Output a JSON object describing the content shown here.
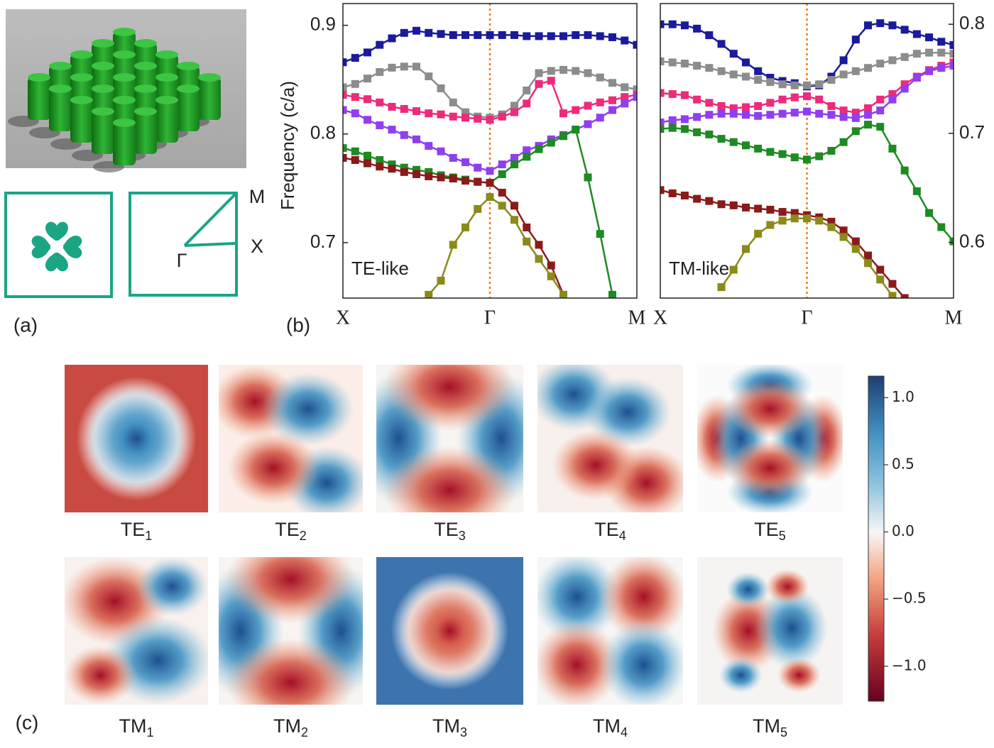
{
  "panel_labels": [
    "(a)",
    "(b)",
    "(c)"
  ],
  "brillouin_zone": {
    "points": [
      "M",
      "X",
      "Γ"
    ]
  },
  "chart_data": [
    {
      "type": "line",
      "annotation": "TE-like",
      "ylabel": "Frequency (c/a)",
      "axis_side": "left",
      "x": [
        0,
        1,
        2,
        3,
        4,
        5,
        6,
        7,
        8,
        9,
        10,
        11,
        12,
        13,
        14,
        15,
        16,
        17,
        18,
        19,
        20,
        21,
        22,
        23,
        24
      ],
      "xlim": [
        0,
        24
      ],
      "xticks": [
        {
          "value": 0,
          "label": "X"
        },
        {
          "value": 12,
          "label": "Γ"
        },
        {
          "value": 24,
          "label": "M"
        }
      ],
      "ylim": [
        0.649,
        0.92
      ],
      "yticks": [
        {
          "value": 0.7,
          "label": "0.7"
        },
        {
          "value": 0.8,
          "label": "0.8"
        },
        {
          "value": 0.9,
          "label": "0.9"
        }
      ],
      "series": [
        {
          "color": "#1a1a9c",
          "values": [
            0.866,
            0.87,
            0.875,
            0.882,
            0.888,
            0.893,
            0.895,
            0.893,
            0.892,
            0.891,
            0.891,
            0.891,
            0.891,
            0.891,
            0.891,
            0.89,
            0.89,
            0.89,
            0.89,
            0.891,
            0.891,
            0.89,
            0.889,
            0.886,
            0.882
          ]
        },
        {
          "color": "#8c8c8c",
          "values": [
            0.843,
            0.846,
            0.851,
            0.857,
            0.861,
            0.862,
            0.862,
            0.853,
            0.842,
            0.829,
            0.82,
            0.816,
            0.815,
            0.818,
            0.826,
            0.84,
            0.856,
            0.858,
            0.859,
            0.858,
            0.856,
            0.852,
            0.847,
            0.843,
            0.841
          ]
        },
        {
          "color": "#ee2a7b",
          "values": [
            0.836,
            0.834,
            0.832,
            0.829,
            0.825,
            0.823,
            0.821,
            0.819,
            0.818,
            0.816,
            0.815,
            0.814,
            0.813,
            0.816,
            0.82,
            0.828,
            0.846,
            0.849,
            0.819,
            0.822,
            0.826,
            0.829,
            0.831,
            0.834,
            0.836
          ]
        },
        {
          "color": "#8f3ff0",
          "values": [
            0.822,
            0.819,
            0.813,
            0.808,
            0.804,
            0.799,
            0.795,
            0.789,
            0.784,
            0.778,
            0.774,
            0.769,
            0.766,
            0.772,
            0.778,
            0.785,
            0.789,
            0.795,
            0.799,
            0.804,
            0.809,
            0.815,
            0.822,
            0.828,
            0.834
          ]
        },
        {
          "color": "#1e8a22",
          "values": [
            0.787,
            0.784,
            0.78,
            0.776,
            0.772,
            0.769,
            0.767,
            0.765,
            0.762,
            0.76,
            0.758,
            0.756,
            0.755,
            0.763,
            0.772,
            0.779,
            0.786,
            0.792,
            0.798,
            0.804,
            0.76,
            0.708,
            0.652,
            null,
            null
          ]
        },
        {
          "color": "#8b1a1a",
          "values": [
            0.778,
            0.776,
            0.773,
            0.77,
            0.768,
            0.765,
            0.763,
            0.761,
            0.76,
            0.759,
            0.757,
            0.756,
            0.755,
            0.746,
            0.734,
            0.714,
            0.698,
            0.679,
            0.652,
            null,
            null,
            null,
            null,
            null,
            null
          ]
        },
        {
          "color": "#8b8a1a",
          "values": [
            null,
            null,
            null,
            null,
            null,
            null,
            null,
            0.652,
            0.665,
            0.698,
            0.714,
            0.731,
            0.742,
            0.734,
            0.721,
            0.701,
            0.685,
            0.669,
            0.652,
            null,
            null,
            null,
            null,
            null,
            null
          ]
        }
      ]
    },
    {
      "type": "line",
      "annotation": "TM-like",
      "axis_side": "right",
      "x": [
        0,
        1,
        2,
        3,
        4,
        5,
        6,
        7,
        8,
        9,
        10,
        11,
        12,
        13,
        14,
        15,
        16,
        17,
        18,
        19,
        20,
        21,
        22,
        23,
        24
      ],
      "xlim": [
        0,
        24
      ],
      "xticks": [
        {
          "value": 0,
          "label": "X"
        },
        {
          "value": 12,
          "label": "Γ"
        },
        {
          "value": 24,
          "label": "M"
        }
      ],
      "ylim": [
        0.549,
        0.819
      ],
      "yticks": [
        {
          "value": 0.6,
          "label": "0.6"
        },
        {
          "value": 0.7,
          "label": "0.7"
        },
        {
          "value": 0.8,
          "label": "0.8"
        }
      ],
      "series": [
        {
          "color": "#1a1a9c",
          "values": [
            0.8,
            0.8,
            0.799,
            0.796,
            0.79,
            0.782,
            0.773,
            0.765,
            0.757,
            0.751,
            0.748,
            0.746,
            0.743,
            0.744,
            0.752,
            0.767,
            0.786,
            0.799,
            0.801,
            0.799,
            0.795,
            0.791,
            0.788,
            0.784,
            0.781
          ]
        },
        {
          "color": "#8c8c8c",
          "values": [
            0.766,
            0.765,
            0.764,
            0.762,
            0.76,
            0.757,
            0.754,
            0.752,
            0.749,
            0.747,
            0.745,
            0.744,
            0.744,
            0.745,
            0.749,
            0.754,
            0.757,
            0.76,
            0.764,
            0.767,
            0.77,
            0.773,
            0.774,
            0.774,
            0.773
          ]
        },
        {
          "color": "#ee2a7b",
          "values": [
            0.737,
            0.736,
            0.735,
            0.731,
            0.728,
            0.725,
            0.723,
            0.724,
            0.725,
            0.728,
            0.731,
            0.733,
            0.734,
            0.731,
            0.725,
            0.721,
            0.719,
            0.723,
            0.731,
            0.736,
            0.745,
            0.752,
            0.758,
            0.762,
            0.765
          ]
        },
        {
          "color": "#8f3ff0",
          "values": [
            0.71,
            0.712,
            0.713,
            0.715,
            0.717,
            0.718,
            0.718,
            0.717,
            0.716,
            0.717,
            0.718,
            0.719,
            0.72,
            0.718,
            0.717,
            0.715,
            0.714,
            0.717,
            0.721,
            0.731,
            0.741,
            0.751,
            0.757,
            0.76,
            0.762
          ]
        },
        {
          "color": "#1e8a22",
          "values": [
            0.704,
            0.705,
            0.704,
            0.701,
            0.699,
            0.695,
            0.692,
            0.689,
            0.686,
            0.683,
            0.681,
            0.678,
            0.676,
            0.679,
            0.684,
            0.692,
            0.702,
            0.708,
            0.706,
            0.686,
            0.666,
            0.647,
            0.627,
            0.614,
            0.601
          ]
        },
        {
          "color": "#8b1a1a",
          "values": [
            0.648,
            0.645,
            0.643,
            0.64,
            0.638,
            0.635,
            0.634,
            0.632,
            0.631,
            0.63,
            0.628,
            0.627,
            0.625,
            0.623,
            0.619,
            0.611,
            0.601,
            0.588,
            0.575,
            0.562,
            0.549,
            null,
            null,
            null,
            null
          ]
        },
        {
          "color": "#8b8a1a",
          "values": [
            null,
            null,
            null,
            null,
            null,
            0.559,
            0.575,
            0.594,
            0.608,
            0.616,
            0.62,
            0.622,
            0.622,
            0.62,
            0.614,
            0.605,
            0.594,
            0.581,
            0.566,
            0.551,
            null,
            null,
            null,
            null,
            null
          ]
        }
      ]
    }
  ],
  "field_maps": [
    {
      "name": "TE",
      "index": "1"
    },
    {
      "name": "TE",
      "index": "2"
    },
    {
      "name": "TE",
      "index": "3"
    },
    {
      "name": "TE",
      "index": "4"
    },
    {
      "name": "TE",
      "index": "5"
    },
    {
      "name": "TM",
      "index": "1"
    },
    {
      "name": "TM",
      "index": "2"
    },
    {
      "name": "TM",
      "index": "3"
    },
    {
      "name": "TM",
      "index": "4"
    },
    {
      "name": "TM",
      "index": "5"
    }
  ],
  "colorbar": {
    "ylim": [
      -1.26,
      1.16
    ],
    "yticks": [
      {
        "value": 1.0,
        "label": "1.0"
      },
      {
        "value": 0.5,
        "label": "0.5"
      },
      {
        "value": 0.0,
        "label": "0.0"
      },
      {
        "value": -0.5,
        "label": "−0.5"
      },
      {
        "value": -1.0,
        "label": "−1.0"
      }
    ]
  }
}
